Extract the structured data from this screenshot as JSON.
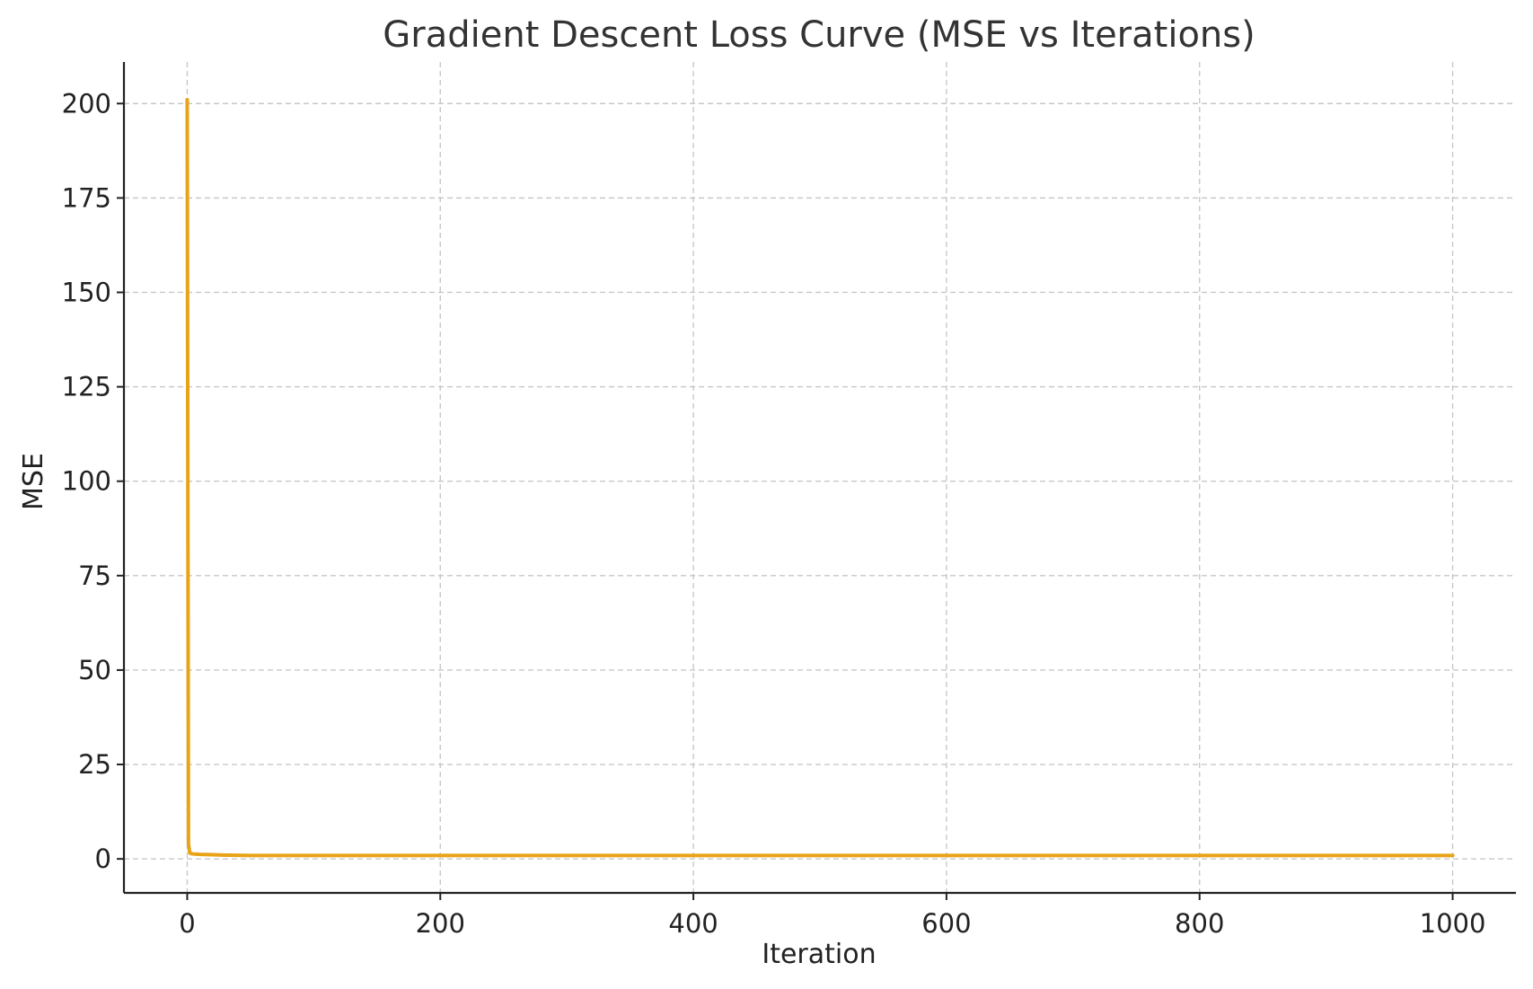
{
  "chart_data": {
    "type": "line",
    "title": "Gradient Descent Loss Curve (MSE vs Iterations)",
    "xlabel": "Iteration",
    "ylabel": "MSE",
    "xlim": [
      -50,
      1050
    ],
    "ylim": [
      -9,
      211
    ],
    "xticks": [
      0,
      200,
      400,
      600,
      800,
      1000
    ],
    "xtick_labels": [
      "0",
      "200",
      "400",
      "600",
      "800",
      "1000"
    ],
    "yticks": [
      0,
      25,
      50,
      75,
      100,
      125,
      150,
      175,
      200
    ],
    "ytick_labels": [
      "0",
      "25",
      "50",
      "75",
      "100",
      "125",
      "150",
      "175",
      "200"
    ],
    "grid": true,
    "series": [
      {
        "color": "#E8A317",
        "x": [
          0,
          1,
          2,
          3,
          5,
          10,
          20,
          30,
          50,
          100,
          200,
          300,
          400,
          500,
          600,
          700,
          800,
          900,
          1000
        ],
        "y": [
          201,
          4,
          1.6,
          1.4,
          1.3,
          1.2,
          1.1,
          1.0,
          0.9,
          0.9,
          0.9,
          0.9,
          0.9,
          0.9,
          0.9,
          0.9,
          0.9,
          0.9,
          0.9
        ]
      }
    ]
  }
}
